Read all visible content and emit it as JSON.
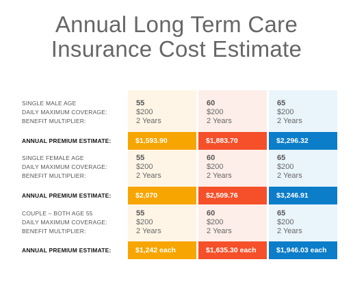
{
  "title": {
    "line1": "Annual Long Term Care",
    "line2": "Insurance Cost Estimate"
  },
  "colors": {
    "orange": "#f7a500",
    "red": "#f5502a",
    "blue": "#0b7dc9"
  },
  "premium_label": "ANNUAL PREMIUM ESTIMATE:",
  "sections": [
    {
      "labels": [
        "SINGLE MALE AGE",
        "DAILY MAXIMUM COVERAGE:",
        "BENEFIT MULTIPLIER:"
      ],
      "columns": [
        {
          "age": "55",
          "coverage": "$200",
          "multiplier": "2 Years",
          "premium": "$1,593.90"
        },
        {
          "age": "60",
          "coverage": "$200",
          "multiplier": "2 Years",
          "premium": "$1,883.70"
        },
        {
          "age": "65",
          "coverage": "$200",
          "multiplier": "2 Years",
          "premium": "$2,296.32"
        }
      ]
    },
    {
      "labels": [
        "SINGLE FEMALE AGE",
        "DAILY MAXIMUM COVERAGE:",
        "BENEFIT MULTIPLIER:"
      ],
      "columns": [
        {
          "age": "55",
          "coverage": "$200",
          "multiplier": "2 Years",
          "premium": "$2,070"
        },
        {
          "age": "60",
          "coverage": "$200",
          "multiplier": "2 Years",
          "premium": "$2,509.76"
        },
        {
          "age": "65",
          "coverage": "$200",
          "multiplier": "2 Years",
          "premium": "$3,246.91"
        }
      ]
    },
    {
      "labels": [
        "COUPLE – BOTH AGE 55",
        "DAILY MAXIMUM COVERAGE:",
        "BENEFIT MULTIPLIER:"
      ],
      "columns": [
        {
          "age": "55",
          "coverage": "$200",
          "multiplier": "2 Years",
          "premium": "$1,242 each"
        },
        {
          "age": "60",
          "coverage": "$200",
          "multiplier": "2 Years",
          "premium": "$1,635.30 each"
        },
        {
          "age": "65",
          "coverage": "$200",
          "multiplier": "2 Years",
          "premium": "$1,946.03 each"
        }
      ]
    }
  ]
}
